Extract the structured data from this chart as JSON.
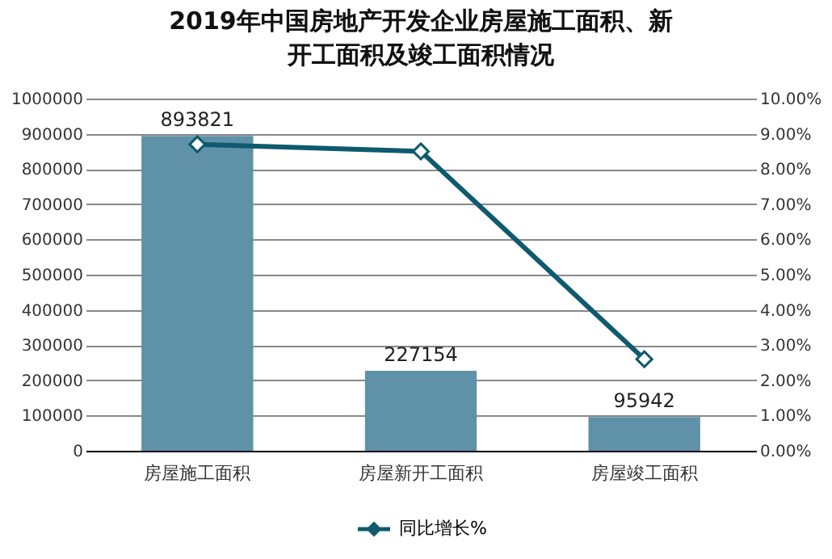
{
  "chart_data": {
    "type": "bar",
    "title": "2019年中国房地产开发企业房屋施工面积、新开工面积及竣工面积情况",
    "categories": [
      "房屋施工面积",
      "房屋新开工面积",
      "房屋竣工面积"
    ],
    "series": [
      {
        "color": "#5f91a8",
        "values": [
          893821,
          227154,
          95942
        ],
        "value_labels": [
          "893821",
          "227154",
          "95942"
        ]
      },
      {
        "type": "line",
        "name": "同比增长%",
        "color": "#0e5a6e",
        "axis": "y2",
        "marker": "diamond",
        "values": [
          8.7,
          8.5,
          2.6
        ]
      }
    ],
    "ylim": [
      0,
      1000000
    ],
    "yticks": [
      0,
      100000,
      200000,
      300000,
      400000,
      500000,
      600000,
      700000,
      800000,
      900000,
      1000000
    ],
    "y2lim": [
      0,
      10
    ],
    "y2ticks": [
      {
        "value": 0,
        "label": "0.00%"
      },
      {
        "value": 1,
        "label": "1.00%"
      },
      {
        "value": 2,
        "label": "2.00%"
      },
      {
        "value": 3,
        "label": "3.00%"
      },
      {
        "value": 4,
        "label": "4.00%"
      },
      {
        "value": 5,
        "label": "5.00%"
      },
      {
        "value": 6,
        "label": "6.00%"
      },
      {
        "value": 7,
        "label": "7.00%"
      },
      {
        "value": 8,
        "label": "8.00%"
      },
      {
        "value": 9,
        "label": "9.00%"
      },
      {
        "value": 10,
        "label": "10.00%"
      }
    ],
    "grid": "y",
    "legend": "bottom"
  }
}
